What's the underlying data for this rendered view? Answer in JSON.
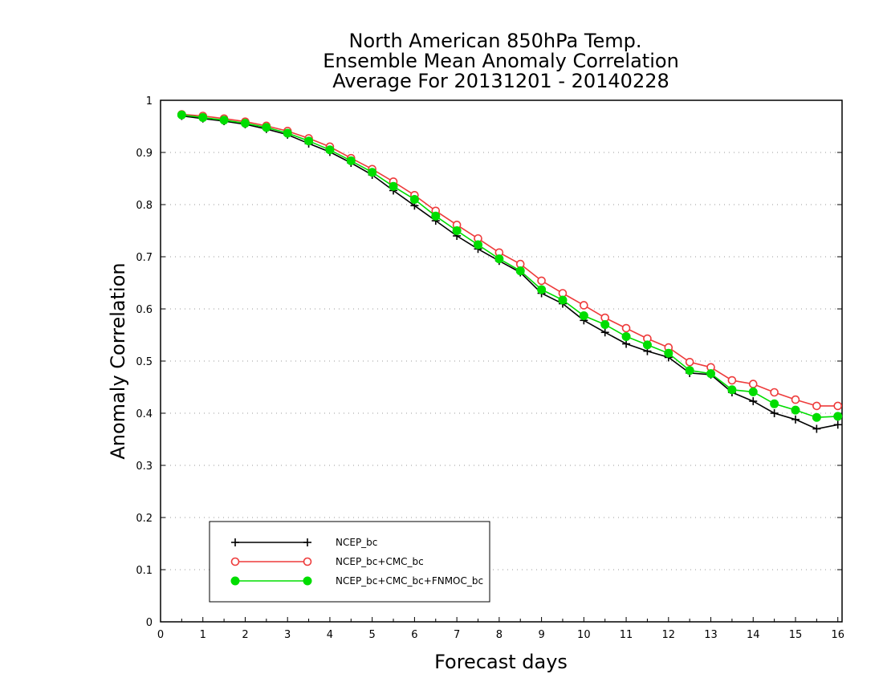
{
  "chart_data": {
    "type": "line",
    "title": [
      "North American 850hPa Temp.",
      "Ensemble Mean Anomaly Correlation",
      "Average For 20131201 - 20140228"
    ],
    "xlabel": "Forecast days",
    "ylabel": "Anomaly Correlation",
    "xlim": [
      0,
      16.1
    ],
    "ylim": [
      0,
      1
    ],
    "x_ticks": [
      0,
      1,
      2,
      3,
      4,
      5,
      6,
      7,
      8,
      9,
      10,
      11,
      12,
      13,
      14,
      15,
      16
    ],
    "x_tick_labels": [
      "0",
      "1",
      "2",
      "3",
      "4",
      "5",
      "6",
      "7",
      "8",
      "9",
      "10",
      "11",
      "12",
      "13",
      "14",
      "15",
      "16"
    ],
    "y_ticks": [
      0,
      0.1,
      0.2,
      0.3,
      0.4,
      0.5,
      0.6,
      0.7,
      0.8,
      0.9,
      1
    ],
    "y_tick_labels": [
      "0",
      "0.1",
      "0.2",
      "0.3",
      "0.4",
      "0.5",
      "0.6",
      "0.7",
      "0.8",
      "0.9",
      "1"
    ],
    "grid": "horizontal-dotted",
    "legend_position": "bottom-left",
    "x": [
      0.5,
      1,
      1.5,
      2,
      2.5,
      3,
      3.5,
      4,
      4.5,
      5,
      5.5,
      6,
      6.5,
      7,
      7.5,
      8,
      8.5,
      9,
      9.5,
      10,
      10.5,
      11,
      11.5,
      12,
      12.5,
      13,
      13.5,
      14,
      14.5,
      15,
      15.5,
      16
    ],
    "series": [
      {
        "name": "NCEP_bc",
        "color": "#000000",
        "marker": "plus",
        "values": [
          0.97,
          0.965,
          0.96,
          0.954,
          0.945,
          0.934,
          0.917,
          0.901,
          0.88,
          0.857,
          0.827,
          0.798,
          0.769,
          0.74,
          0.715,
          0.692,
          0.67,
          0.63,
          0.61,
          0.578,
          0.555,
          0.533,
          0.519,
          0.507,
          0.477,
          0.474,
          0.44,
          0.423,
          0.4,
          0.388,
          0.37,
          0.378
        ]
      },
      {
        "name": "NCEP_bc+CMC_bc",
        "color": "#ee3b3b",
        "marker": "open-circle",
        "values": [
          0.973,
          0.97,
          0.965,
          0.959,
          0.951,
          0.941,
          0.927,
          0.911,
          0.889,
          0.868,
          0.844,
          0.818,
          0.788,
          0.761,
          0.735,
          0.708,
          0.686,
          0.654,
          0.63,
          0.607,
          0.583,
          0.563,
          0.543,
          0.526,
          0.498,
          0.488,
          0.463,
          0.456,
          0.44,
          0.426,
          0.414,
          0.414
        ]
      },
      {
        "name": "NCEP_bc+CMC_bc+FNMOC_bc",
        "color": "#00dd00",
        "marker": "filled-circle",
        "values": [
          0.972,
          0.967,
          0.962,
          0.956,
          0.948,
          0.937,
          0.922,
          0.905,
          0.884,
          0.862,
          0.835,
          0.81,
          0.778,
          0.75,
          0.723,
          0.696,
          0.673,
          0.637,
          0.617,
          0.587,
          0.57,
          0.547,
          0.531,
          0.515,
          0.482,
          0.476,
          0.445,
          0.441,
          0.418,
          0.406,
          0.392,
          0.394
        ]
      }
    ]
  }
}
